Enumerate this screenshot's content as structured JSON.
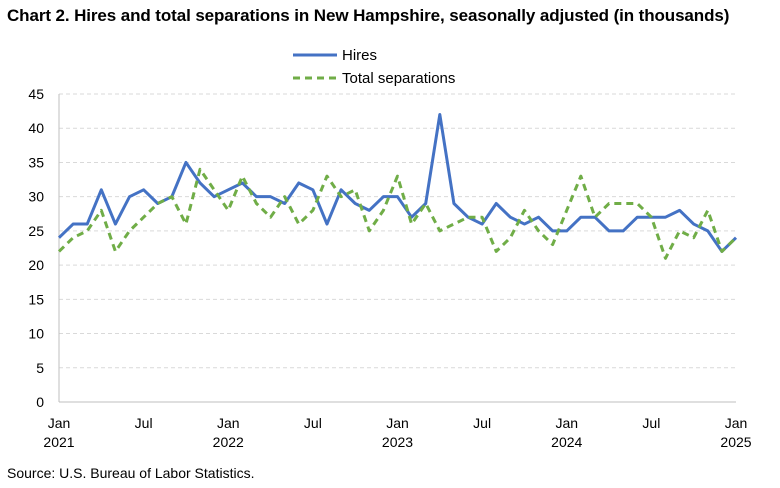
{
  "title": "Chart 2. Hires and total separations in New Hampshire, seasonally adjusted (in thousands)",
  "source": "Source: U.S. Bureau of Labor Statistics.",
  "chart_data": {
    "type": "line",
    "title": "Chart 2. Hires and total separations in New Hampshire, seasonally adjusted (in thousands)",
    "ylim": [
      0,
      45
    ],
    "yticks": [
      "0",
      "5",
      "10",
      "15",
      "20",
      "25",
      "30",
      "35",
      "40",
      "45"
    ],
    "grid": "horizontal dashed",
    "legend_position": "top-center",
    "x_tick_labels": [
      {
        "month": "Jan",
        "year": "2021"
      },
      {
        "month": "Jul",
        "year": ""
      },
      {
        "month": "Jan",
        "year": "2022"
      },
      {
        "month": "Jul",
        "year": ""
      },
      {
        "month": "Jan",
        "year": "2023"
      },
      {
        "month": "Jul",
        "year": ""
      },
      {
        "month": "Jan",
        "year": "2024"
      },
      {
        "month": "Jul",
        "year": ""
      },
      {
        "month": "Jan",
        "year": "2025"
      }
    ],
    "x": [
      "2021-01",
      "2021-02",
      "2021-03",
      "2021-04",
      "2021-05",
      "2021-06",
      "2021-07",
      "2021-08",
      "2021-09",
      "2021-10",
      "2021-11",
      "2021-12",
      "2022-01",
      "2022-02",
      "2022-03",
      "2022-04",
      "2022-05",
      "2022-06",
      "2022-07",
      "2022-08",
      "2022-09",
      "2022-10",
      "2022-11",
      "2022-12",
      "2023-01",
      "2023-02",
      "2023-03",
      "2023-04",
      "2023-05",
      "2023-06",
      "2023-07",
      "2023-08",
      "2023-09",
      "2023-10",
      "2023-11",
      "2023-12",
      "2024-01",
      "2024-02",
      "2024-03",
      "2024-04",
      "2024-05",
      "2024-06",
      "2024-07",
      "2024-08",
      "2024-09",
      "2024-10",
      "2024-11",
      "2024-12",
      "2025-01"
    ],
    "series": [
      {
        "name": "Hires",
        "color": "#4472C4",
        "style": "solid",
        "values": [
          24,
          26,
          26,
          31,
          26,
          30,
          31,
          29,
          30,
          35,
          32,
          30,
          31,
          32,
          30,
          30,
          29,
          32,
          31,
          26,
          31,
          29,
          28,
          30,
          30,
          27,
          29,
          42,
          29,
          27,
          26,
          29,
          27,
          26,
          27,
          25,
          25,
          27,
          27,
          25,
          25,
          27,
          27,
          27,
          28,
          26,
          25,
          22,
          24
        ]
      },
      {
        "name": "Total separations",
        "color": "#70AD47",
        "style": "dashed",
        "values": [
          22,
          24,
          25,
          28,
          22,
          25,
          27,
          29,
          30,
          26,
          34,
          31,
          28,
          33,
          29,
          27,
          30,
          26,
          28,
          33,
          30,
          31,
          25,
          28,
          33,
          26,
          29,
          25,
          26,
          27,
          27,
          22,
          24,
          28,
          25,
          23,
          28,
          33,
          27,
          29,
          29,
          29,
          27,
          21,
          25,
          24,
          28,
          22,
          24
        ]
      }
    ]
  }
}
